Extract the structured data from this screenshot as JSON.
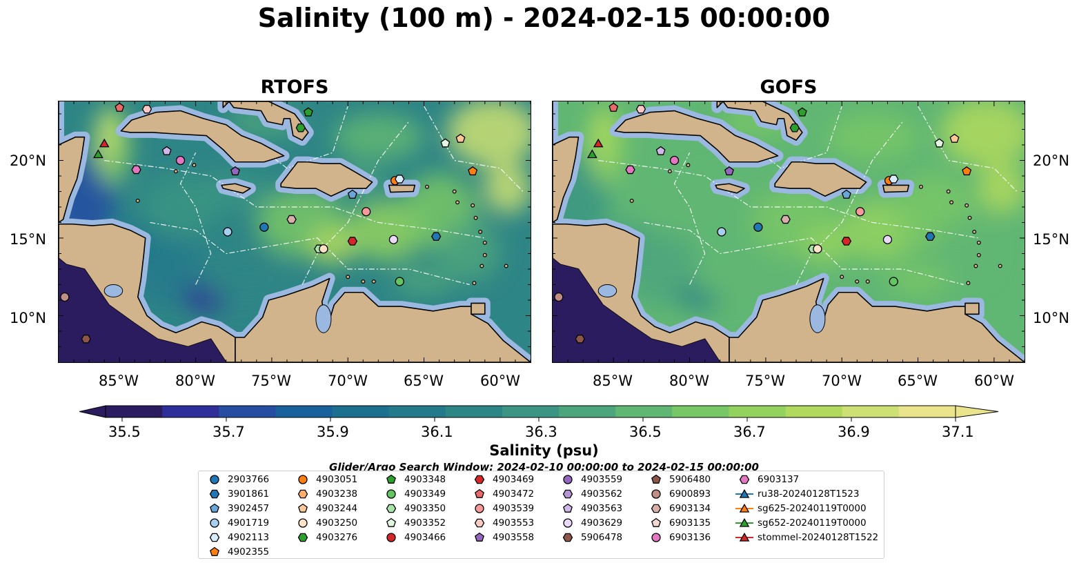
{
  "title": "Salinity (100 m) - 2024-02-15 00:00:00",
  "panels": [
    {
      "name": "RTOFS",
      "colormode": "rtofs"
    },
    {
      "name": "GOFS",
      "colormode": "gofs"
    }
  ],
  "axes": {
    "lat_ticks": [
      "10°N",
      "15°N",
      "20°N"
    ],
    "lon_ticks": [
      "85°W",
      "80°W",
      "75°W",
      "70°W",
      "65°W",
      "60°W"
    ]
  },
  "colorbar": {
    "label": "Salinity (psu)",
    "tick_labels": [
      "35.5",
      "35.7",
      "35.9",
      "36.1",
      "36.3",
      "36.5",
      "36.7",
      "36.9",
      "37.1"
    ],
    "colors": [
      "#2a1c5e",
      "#302f9a",
      "#254ea3",
      "#19619a",
      "#1d6f8f",
      "#24798b",
      "#2e8585",
      "#3b9582",
      "#4ca57c",
      "#60b673",
      "#78c766",
      "#93d25f",
      "#b0d95e",
      "#cde073",
      "#eae48d"
    ]
  },
  "search_window": "Glider/Argo Search Window: 2024-02-10 00:00:00 to 2024-02-15 00:00:00",
  "colors": {
    "land": "#d2b48c",
    "shelf": "#9ab8e0",
    "deep_pacific": "#2a1c5e"
  },
  "legend": [
    {
      "label": "2903766",
      "marker": "circle",
      "color": "#1f77b4"
    },
    {
      "label": "3901861",
      "marker": "hexagon",
      "color": "#1f77b4"
    },
    {
      "label": "3902457",
      "marker": "pentagon",
      "color": "#6aa7d6"
    },
    {
      "label": "4901719",
      "marker": "circle",
      "color": "#a6cff0"
    },
    {
      "label": "4902113",
      "marker": "hexagon",
      "color": "#d8ecfa"
    },
    {
      "label": "4902355",
      "marker": "pentagon",
      "color": "#ff7f0e"
    },
    {
      "label": "4903051",
      "marker": "circle",
      "color": "#ff7f0e"
    },
    {
      "label": "4903238",
      "marker": "hexagon",
      "color": "#ffae6b"
    },
    {
      "label": "4903244",
      "marker": "pentagon",
      "color": "#ffc899"
    },
    {
      "label": "4903250",
      "marker": "circle",
      "color": "#ffe2c8"
    },
    {
      "label": "4903276",
      "marker": "hexagon",
      "color": "#2ca02c"
    },
    {
      "label": "4903348",
      "marker": "pentagon",
      "color": "#2ca02c"
    },
    {
      "label": "4903349",
      "marker": "circle",
      "color": "#63c663"
    },
    {
      "label": "4903350",
      "marker": "hexagon",
      "color": "#a8e3a8"
    },
    {
      "label": "4903352",
      "marker": "pentagon",
      "color": "#e2f7e2"
    },
    {
      "label": "4903466",
      "marker": "circle",
      "color": "#d62728"
    },
    {
      "label": "4903469",
      "marker": "hexagon",
      "color": "#d62728"
    },
    {
      "label": "4903472",
      "marker": "pentagon",
      "color": "#ea6a6a"
    },
    {
      "label": "4903539",
      "marker": "circle",
      "color": "#f59a98"
    },
    {
      "label": "4903553",
      "marker": "hexagon",
      "color": "#fcc9c7"
    },
    {
      "label": "4903558",
      "marker": "pentagon",
      "color": "#9467bd"
    },
    {
      "label": "4903559",
      "marker": "circle",
      "color": "#9467bd"
    },
    {
      "label": "4903562",
      "marker": "hexagon",
      "color": "#b594d8"
    },
    {
      "label": "4903563",
      "marker": "pentagon",
      "color": "#d0b9ea"
    },
    {
      "label": "4903629",
      "marker": "circle",
      "color": "#ead9f8"
    },
    {
      "label": "5906478",
      "marker": "hexagon",
      "color": "#8c564b"
    },
    {
      "label": "5906480",
      "marker": "pentagon",
      "color": "#8c564b"
    },
    {
      "label": "6900893",
      "marker": "circle",
      "color": "#c08e85"
    },
    {
      "label": "6903134",
      "marker": "hexagon",
      "color": "#d9b0a8"
    },
    {
      "label": "6903135",
      "marker": "pentagon",
      "color": "#f2d8d3"
    },
    {
      "label": "6903136",
      "marker": "circle",
      "color": "#e377c2"
    },
    {
      "label": "6903137",
      "marker": "hexagon",
      "color": "#e377c2"
    },
    {
      "label": "ru38-20240128T1523",
      "marker": "triangle",
      "color": "#1f77b4"
    },
    {
      "label": "sg625-20240119T0000",
      "marker": "triangle",
      "color": "#ff7f0e"
    },
    {
      "label": "sg652-20240119T0000",
      "marker": "triangle",
      "color": "#2ca02c"
    },
    {
      "label": "stommel-20240128T1522",
      "marker": "triangle",
      "color": "#d62728"
    }
  ],
  "observations": [
    {
      "id": "4903472",
      "lon": -85.0,
      "lat": 23.4
    },
    {
      "id": "4903553",
      "lon": -83.2,
      "lat": 23.3
    },
    {
      "id": "4903348",
      "lon": -72.6,
      "lat": 23.1
    },
    {
      "id": "4903276",
      "lon": -73.1,
      "lat": 22.1
    },
    {
      "id": "4903352",
      "lon": -63.6,
      "lat": 21.1
    },
    {
      "id": "4903244",
      "lon": -62.6,
      "lat": 21.4
    },
    {
      "id": "4903563",
      "lon": -81.9,
      "lat": 20.6
    },
    {
      "id": "6903136",
      "lon": -81.0,
      "lat": 20.0
    },
    {
      "id": "6903137",
      "lon": -83.9,
      "lat": 19.4
    },
    {
      "id": "4903558",
      "lon": -77.4,
      "lat": 19.3
    },
    {
      "id": "4902355",
      "lon": -61.8,
      "lat": 19.3
    },
    {
      "id": "4903051",
      "lon": -66.9,
      "lat": 18.7
    },
    {
      "id": "4902113",
      "lon": -66.6,
      "lat": 18.8
    },
    {
      "id": "3902457",
      "lon": -69.7,
      "lat": 17.8
    },
    {
      "id": "4903539",
      "lon": -68.8,
      "lat": 16.7
    },
    {
      "id": "6903134",
      "lon": -73.7,
      "lat": 16.2
    },
    {
      "id": "2903766",
      "lon": -75.5,
      "lat": 15.7
    },
    {
      "id": "4901719",
      "lon": -77.9,
      "lat": 15.4
    },
    {
      "id": "3901861",
      "lon": -64.2,
      "lat": 15.1
    },
    {
      "id": "4903629",
      "lon": -67.0,
      "lat": 14.9
    },
    {
      "id": "4903469",
      "lon": -69.7,
      "lat": 14.8
    },
    {
      "id": "4903350",
      "lon": -71.9,
      "lat": 14.3
    },
    {
      "id": "4903250",
      "lon": -71.6,
      "lat": 14.3
    },
    {
      "id": "4903349",
      "lon": -66.6,
      "lat": 12.2
    },
    {
      "id": "6900893",
      "lon": -88.6,
      "lat": 11.2
    },
    {
      "id": "5906478",
      "lon": -87.2,
      "lat": 8.5
    },
    {
      "id": "stommel-20240128T1522",
      "lon": -86.0,
      "lat": 21.1
    },
    {
      "id": "sg652-20240119T0000",
      "lon": -86.4,
      "lat": 20.4
    }
  ]
}
